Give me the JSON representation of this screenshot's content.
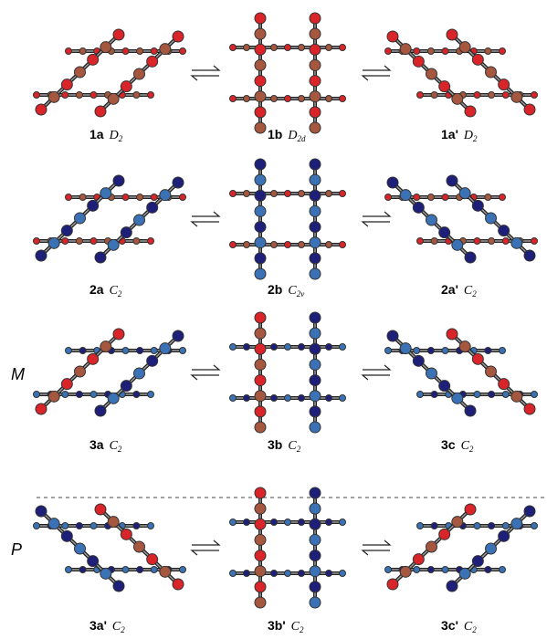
{
  "rows": [
    {
      "items": [
        {
          "id": "1a",
          "symmetry": {
            "letter": "D",
            "sub": "2"
          }
        },
        {
          "id": "1b",
          "symmetry": {
            "letter": "D",
            "sub": "2d"
          }
        },
        {
          "id": "1a'",
          "symmetry": {
            "letter": "D",
            "sub": "2"
          }
        }
      ]
    },
    {
      "items": [
        {
          "id": "2a",
          "symmetry": {
            "letter": "C",
            "sub": "2"
          }
        },
        {
          "id": "2b",
          "symmetry": {
            "letter": "C",
            "sub": "2v"
          }
        },
        {
          "id": "2a'",
          "symmetry": {
            "letter": "C",
            "sub": "2"
          }
        }
      ]
    },
    {
      "label": "M",
      "items": [
        {
          "id": "3a",
          "symmetry": {
            "letter": "C",
            "sub": "2"
          }
        },
        {
          "id": "3b",
          "symmetry": {
            "letter": "C",
            "sub": "2"
          }
        },
        {
          "id": "3c",
          "symmetry": {
            "letter": "C",
            "sub": "2"
          }
        }
      ]
    },
    {
      "label": "P",
      "items": [
        {
          "id": "3a'",
          "symmetry": {
            "letter": "C",
            "sub": "2"
          }
        },
        {
          "id": "3b'",
          "symmetry": {
            "letter": "C",
            "sub": "2"
          }
        },
        {
          "id": "3c'",
          "symmetry": {
            "letter": "C",
            "sub": "2"
          }
        }
      ]
    }
  ]
}
